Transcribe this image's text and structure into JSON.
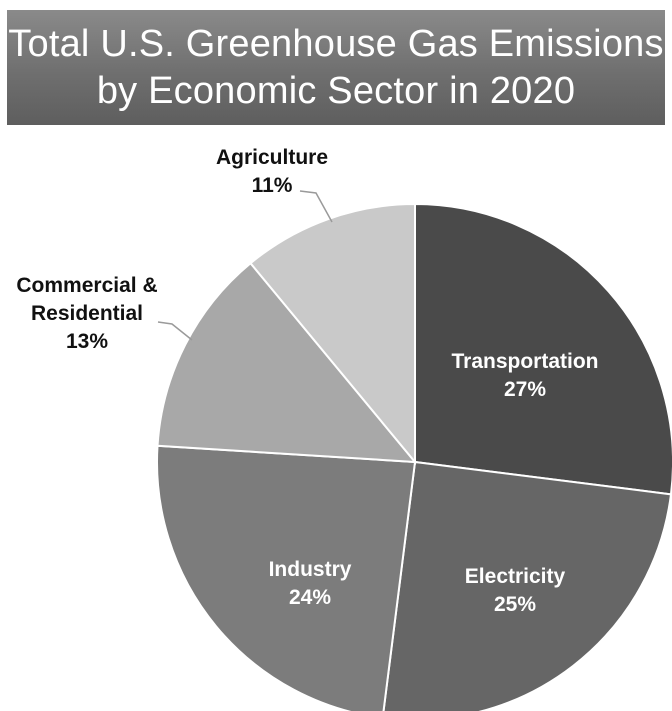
{
  "chart_data": {
    "type": "pie",
    "title_lines": [
      "Total U.S. Greenhouse Gas Emissions",
      "by Economic Sector in 2020"
    ],
    "unit": "%",
    "slices": [
      {
        "label_lines": [
          "Transportation"
        ],
        "value": 27,
        "value_text": "27%",
        "color": "#4a4a4a",
        "label_color": "#ffffff"
      },
      {
        "label_lines": [
          "Electricity"
        ],
        "value": 25,
        "value_text": "25%",
        "color": "#666666",
        "label_color": "#ffffff"
      },
      {
        "label_lines": [
          "Industry"
        ],
        "value": 24,
        "value_text": "24%",
        "color": "#7c7c7c",
        "label_color": "#ffffff"
      },
      {
        "label_lines": [
          "Commercial &",
          "Residential"
        ],
        "value": 13,
        "value_text": "13%",
        "color": "#a8a8a8",
        "label_color": "#111111"
      },
      {
        "label_lines": [
          "Agriculture"
        ],
        "value": 11,
        "value_text": "11%",
        "color": "#c9c9c9",
        "label_color": "#111111"
      }
    ]
  }
}
